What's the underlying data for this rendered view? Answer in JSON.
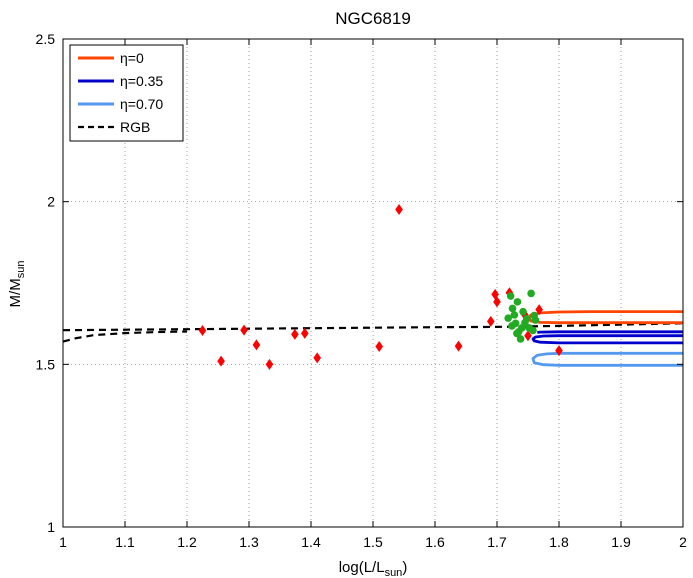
{
  "chart_data": {
    "type": "scatter",
    "title": "NGC6819",
    "xlabel": {
      "base": "log(L/L",
      "sub": "sun",
      "end": ")"
    },
    "ylabel": {
      "base": "M/M",
      "sub": "sun"
    },
    "xlim": [
      1,
      2
    ],
    "ylim": [
      1,
      2.5
    ],
    "xticks": [
      1,
      1.1,
      1.2,
      1.3,
      1.4,
      1.5,
      1.6,
      1.7,
      1.8,
      1.9,
      2
    ],
    "xtick_labels": [
      "1",
      "1.1",
      "1.2",
      "1.3",
      "1.4",
      "1.5",
      "1.6",
      "1.7",
      "1.8",
      "1.9",
      "2"
    ],
    "yticks": [
      1,
      1.5,
      2,
      2.5
    ],
    "ytick_labels": [
      "1",
      "1.5",
      "2",
      "2.5"
    ],
    "grid": true,
    "legend_position": "top-left",
    "legend": [
      {
        "label": "η=0",
        "color": "#ff4500",
        "style": "solid"
      },
      {
        "label": "η=0.35",
        "color": "#0000cd",
        "style": "solid"
      },
      {
        "label": "η=0.70",
        "color": "#5599ee",
        "style": "solid"
      },
      {
        "label": "RGB",
        "color": "#000000",
        "style": "dashed"
      }
    ],
    "series": [
      {
        "name": "RGB",
        "kind": "line",
        "color": "#000000",
        "dashed": true,
        "points": [
          [
            1.0,
            1.605
          ],
          [
            1.2,
            1.608
          ],
          [
            1.4,
            1.611
          ],
          [
            1.6,
            1.614
          ],
          [
            1.7,
            1.615
          ],
          [
            1.8,
            1.618
          ],
          [
            1.9,
            1.622
          ],
          [
            2.0,
            1.626
          ]
        ]
      },
      {
        "name": "RGB-early",
        "kind": "line",
        "color": "#000000",
        "dashed": true,
        "points": [
          [
            1.0,
            1.57
          ],
          [
            1.02,
            1.58
          ],
          [
            1.05,
            1.59
          ],
          [
            1.1,
            1.596
          ],
          [
            1.15,
            1.599
          ],
          [
            1.2,
            1.601
          ]
        ]
      },
      {
        "name": "η=0",
        "kind": "line",
        "color": "#ff4500",
        "dashed": false,
        "points": [
          [
            2.0,
            1.662
          ],
          [
            1.85,
            1.662
          ],
          [
            1.8,
            1.661
          ],
          [
            1.77,
            1.658
          ],
          [
            1.755,
            1.652
          ],
          [
            1.752,
            1.643
          ],
          [
            1.755,
            1.633
          ],
          [
            1.77,
            1.629
          ],
          [
            1.8,
            1.628
          ],
          [
            1.9,
            1.628
          ],
          [
            2.0,
            1.628
          ]
        ]
      },
      {
        "name": "η=0.35 top",
        "kind": "line",
        "color": "#0000cd",
        "dashed": false,
        "points": [
          [
            2.0,
            1.6
          ],
          [
            1.8,
            1.6
          ],
          [
            1.77,
            1.599
          ],
          [
            1.765,
            1.598
          ]
        ]
      },
      {
        "name": "η=0.35 bottom",
        "kind": "line",
        "color": "#0000cd",
        "dashed": false,
        "points": [
          [
            2.0,
            1.566
          ],
          [
            1.8,
            1.566
          ],
          [
            1.77,
            1.568
          ],
          [
            1.76,
            1.572
          ],
          [
            1.758,
            1.578
          ],
          [
            1.762,
            1.584
          ],
          [
            1.775,
            1.587
          ],
          [
            1.8,
            1.588
          ],
          [
            2.0,
            1.588
          ]
        ]
      },
      {
        "name": "η=0.70",
        "kind": "line",
        "color": "#5599ee",
        "dashed": false,
        "points": [
          [
            2.0,
            1.534
          ],
          [
            1.8,
            1.534
          ],
          [
            1.78,
            1.532
          ],
          [
            1.765,
            1.528
          ],
          [
            1.758,
            1.518
          ],
          [
            1.76,
            1.505
          ],
          [
            1.775,
            1.499
          ],
          [
            1.8,
            1.497
          ],
          [
            2.0,
            1.497
          ]
        ]
      },
      {
        "name": "Red stars",
        "kind": "scatter",
        "marker": "diamond",
        "color": "#ff0000",
        "points": [
          [
            1.225,
            1.604
          ],
          [
            1.255,
            1.51
          ],
          [
            1.292,
            1.605
          ],
          [
            1.312,
            1.56
          ],
          [
            1.333,
            1.5
          ],
          [
            1.374,
            1.592
          ],
          [
            1.39,
            1.595
          ],
          [
            1.41,
            1.52
          ],
          [
            1.51,
            1.555
          ],
          [
            1.542,
            1.976
          ],
          [
            1.638,
            1.556
          ],
          [
            1.69,
            1.632
          ],
          [
            1.697,
            1.715
          ],
          [
            1.7,
            1.692
          ],
          [
            1.72,
            1.72
          ],
          [
            1.745,
            1.652
          ],
          [
            1.75,
            1.588
          ],
          [
            1.768,
            1.668
          ],
          [
            1.8,
            1.542
          ]
        ]
      },
      {
        "name": "Clump stars",
        "kind": "scatter",
        "marker": "circle",
        "color": "#22aa22",
        "points": [
          [
            1.718,
            1.642
          ],
          [
            1.722,
            1.71
          ],
          [
            1.725,
            1.672
          ],
          [
            1.728,
            1.652
          ],
          [
            1.73,
            1.626
          ],
          [
            1.733,
            1.692
          ],
          [
            1.735,
            1.6
          ],
          [
            1.738,
            1.578
          ],
          [
            1.74,
            1.612
          ],
          [
            1.742,
            1.662
          ],
          [
            1.745,
            1.628
          ],
          [
            1.748,
            1.64
          ],
          [
            1.752,
            1.612
          ],
          [
            1.755,
            1.718
          ],
          [
            1.758,
            1.604
          ],
          [
            1.76,
            1.65
          ],
          [
            1.762,
            1.636
          ],
          [
            1.724,
            1.618
          ],
          [
            1.732,
            1.595
          ]
        ]
      }
    ]
  }
}
